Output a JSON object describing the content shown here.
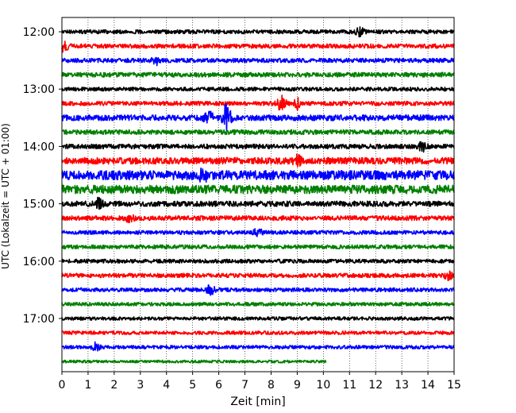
{
  "chart_data": {
    "type": "line",
    "title": "",
    "xlabel": "Zeit  [min]",
    "ylabel": "UTC (Lokalzeit = UTC + 01:00)",
    "xlim": [
      0,
      15
    ],
    "x_ticks": [
      "0",
      "1",
      "2",
      "3",
      "4",
      "5",
      "6",
      "7",
      "8",
      "9",
      "10",
      "11",
      "12",
      "13",
      "14",
      "15"
    ],
    "y_tick_labels": [
      "12:00",
      "13:00",
      "14:00",
      "15:00",
      "16:00",
      "17:00"
    ],
    "y_tick_rows": [
      0,
      4,
      8,
      12,
      16,
      20
    ],
    "grid": "vertical dotted",
    "row_interval_minutes": 15,
    "rows_start": "12:00",
    "color_cycle": [
      "#000000",
      "#ff0000",
      "#0000ff",
      "#008000"
    ],
    "traces": [
      {
        "start": "12:00",
        "end_min": 15,
        "amp": 1.0,
        "events": [
          {
            "t": 11.4,
            "a": 2.0
          }
        ]
      },
      {
        "start": "12:15",
        "end_min": 15,
        "amp": 1.1,
        "events": [
          {
            "t": 0.1,
            "a": 3.0
          }
        ]
      },
      {
        "start": "12:30",
        "end_min": 15,
        "amp": 1.1,
        "events": [
          {
            "t": 3.6,
            "a": 1.8
          }
        ]
      },
      {
        "start": "12:45",
        "end_min": 15,
        "amp": 1.2,
        "events": []
      },
      {
        "start": "13:00",
        "end_min": 15,
        "amp": 1.0,
        "events": []
      },
      {
        "start": "13:15",
        "end_min": 15,
        "amp": 1.1,
        "events": [
          {
            "t": 8.4,
            "a": 4.5
          },
          {
            "t": 9.0,
            "a": 2.5
          }
        ]
      },
      {
        "start": "13:30",
        "end_min": 15,
        "amp": 1.5,
        "events": [
          {
            "t": 5.6,
            "a": 4.0
          },
          {
            "t": 6.3,
            "a": 7.0
          }
        ]
      },
      {
        "start": "13:45",
        "end_min": 15,
        "amp": 1.2,
        "events": []
      },
      {
        "start": "14:00",
        "end_min": 15,
        "amp": 1.2,
        "events": [
          {
            "t": 13.8,
            "a": 2.2
          }
        ]
      },
      {
        "start": "14:15",
        "end_min": 15,
        "amp": 1.7,
        "events": [
          {
            "t": 9.0,
            "a": 2.2
          }
        ]
      },
      {
        "start": "14:30",
        "end_min": 15,
        "amp": 2.4,
        "events": [
          {
            "t": 5.4,
            "a": 3.0
          }
        ]
      },
      {
        "start": "14:45",
        "end_min": 15,
        "amp": 2.2,
        "events": []
      },
      {
        "start": "15:00",
        "end_min": 15,
        "amp": 1.4,
        "events": [
          {
            "t": 1.4,
            "a": 2.5
          }
        ]
      },
      {
        "start": "15:15",
        "end_min": 15,
        "amp": 1.2,
        "events": [
          {
            "t": 2.6,
            "a": 1.8
          }
        ]
      },
      {
        "start": "15:30",
        "end_min": 15,
        "amp": 1.0,
        "events": [
          {
            "t": 7.5,
            "a": 2.0
          }
        ]
      },
      {
        "start": "15:45",
        "end_min": 15,
        "amp": 1.0,
        "events": []
      },
      {
        "start": "16:00",
        "end_min": 15,
        "amp": 1.0,
        "events": []
      },
      {
        "start": "16:15",
        "end_min": 15,
        "amp": 1.1,
        "events": [
          {
            "t": 14.8,
            "a": 2.0
          }
        ]
      },
      {
        "start": "16:30",
        "end_min": 15,
        "amp": 1.0,
        "events": [
          {
            "t": 5.7,
            "a": 2.8
          }
        ]
      },
      {
        "start": "16:45",
        "end_min": 15,
        "amp": 0.9,
        "events": []
      },
      {
        "start": "17:00",
        "end_min": 15,
        "amp": 0.9,
        "events": []
      },
      {
        "start": "17:15",
        "end_min": 15,
        "amp": 0.9,
        "events": []
      },
      {
        "start": "17:30",
        "end_min": 15,
        "amp": 0.9,
        "events": [
          {
            "t": 1.3,
            "a": 2.0
          }
        ]
      },
      {
        "start": "17:45",
        "end_min": 10.1,
        "amp": 0.7,
        "events": []
      }
    ]
  }
}
